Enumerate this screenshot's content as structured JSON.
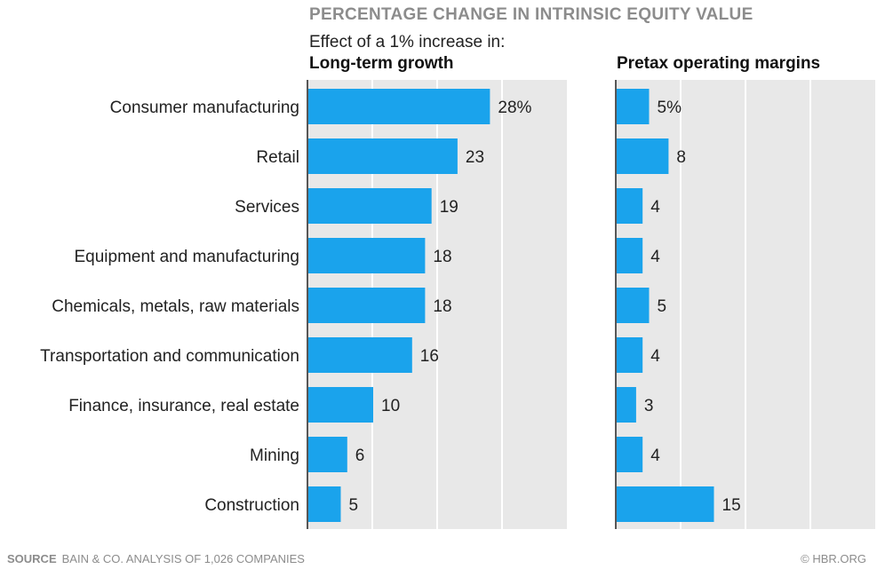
{
  "chart_data": {
    "type": "bar",
    "orientation": "horizontal",
    "title": "PERCENTAGE CHANGE IN INTRINSIC EQUITY VALUE",
    "subtitle": "Effect of a 1% increase in:",
    "categories": [
      "Consumer manufacturing",
      "Retail",
      "Services",
      "Equipment and manufacturing",
      "Chemicals, metals, raw materials",
      "Transportation and communication",
      "Finance, insurance, real estate",
      "Mining",
      "Construction"
    ],
    "series": [
      {
        "name": "Long-term growth",
        "values": [
          28,
          23,
          19,
          18,
          18,
          16,
          10,
          6,
          5
        ],
        "value_labels": [
          "28%",
          "23",
          "19",
          "18",
          "18",
          "16",
          "10",
          "6",
          "5"
        ],
        "xlim": [
          0,
          40
        ]
      },
      {
        "name": "Pretax operating margins",
        "values": [
          5,
          8,
          4,
          4,
          5,
          4,
          3,
          4,
          15
        ],
        "value_labels": [
          "5%",
          "8",
          "4",
          "4",
          "5",
          "4",
          "3",
          "4",
          "15"
        ],
        "xlim": [
          0,
          40
        ]
      }
    ],
    "grid": true,
    "colors": {
      "bar": "#1aa3ec",
      "panel_bg": "#e8e8e8",
      "gridline": "#ffffff",
      "title": "#8c8c8c"
    }
  },
  "footer": {
    "source_label": "SOURCE",
    "source_text": "BAIN & CO. ANALYSIS OF 1,026 COMPANIES",
    "credit": "© HBR.ORG"
  }
}
